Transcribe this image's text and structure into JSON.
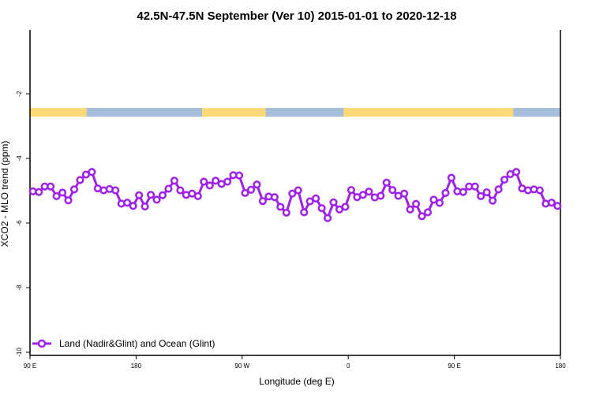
{
  "chart_data": {
    "type": "line",
    "title": "42.5N-47.5N September (Ver 10)   2015-01-01 to 2020-12-18",
    "xlabel": "Longitude (deg E)",
    "ylabel": "XCO2 - MLO trend (ppm)",
    "xlim": [
      90,
      540
    ],
    "ylim": [
      -10.2,
      0
    ],
    "x_ticks": [
      {
        "value": 90,
        "label": "90 E"
      },
      {
        "value": 180,
        "label": "180"
      },
      {
        "value": 270,
        "label": "90 W"
      },
      {
        "value": 360,
        "label": "0"
      },
      {
        "value": 450,
        "label": "90 E"
      },
      {
        "value": 540,
        "label": "180"
      }
    ],
    "y_ticks": [
      {
        "value": -2,
        "label": "-2"
      },
      {
        "value": -4,
        "label": "-4"
      },
      {
        "value": -6,
        "label": "-6"
      },
      {
        "value": -8,
        "label": "-8"
      },
      {
        "value": -10,
        "label": "-10"
      }
    ],
    "legend": {
      "position": "bottom-left",
      "entries": [
        "Land (Nadir&Glint) and Ocean (Glint)"
      ]
    },
    "surface_band": {
      "y_range": [
        -2.45,
        -2.7
      ],
      "segments": [
        {
          "from": 90,
          "to": 138,
          "type": "land"
        },
        {
          "from": 138,
          "to": 236,
          "type": "ocean"
        },
        {
          "from": 236,
          "to": 290,
          "type": "land"
        },
        {
          "from": 290,
          "to": 356,
          "type": "ocean"
        },
        {
          "from": 356,
          "to": 411,
          "type": "land"
        },
        {
          "from": 411,
          "to": 500,
          "type": "land"
        },
        {
          "from": 500,
          "to": 540,
          "type": "ocean"
        }
      ]
    },
    "colors": {
      "series": "#a020f0",
      "land": "#ffd978",
      "ocean": "#a6bddb"
    },
    "series": [
      {
        "name": "Land (Nadir&Glint) and Ocean (Glint)",
        "x_start": 92.5,
        "x_step": 5,
        "values": [
          -5.02,
          -5.04,
          -4.87,
          -4.87,
          -5.17,
          -5.06,
          -5.3,
          -4.96,
          -4.67,
          -4.5,
          -4.42,
          -4.93,
          -4.99,
          -4.95,
          -4.99,
          -5.4,
          -5.37,
          -5.47,
          -5.14,
          -5.49,
          -5.13,
          -5.28,
          -5.14,
          -4.94,
          -4.69,
          -4.99,
          -5.13,
          -5.09,
          -5.17,
          -4.72,
          -4.84,
          -4.69,
          -4.79,
          -4.72,
          -4.52,
          -4.53,
          -5.07,
          -4.97,
          -4.81,
          -5.32,
          -5.18,
          -5.2,
          -5.5,
          -5.68,
          -5.09,
          -4.99,
          -5.67,
          -5.33,
          -5.24,
          -5.54,
          -5.85,
          -5.36,
          -5.58,
          -5.5,
          -4.98,
          -5.2,
          -5.13,
          -5.03,
          -5.21,
          -5.16,
          -4.75,
          -4.98,
          -5.16,
          -5.09,
          -5.58,
          -5.41,
          -5.79,
          -5.67,
          -5.28,
          -5.38,
          -5.07,
          -4.6,
          -5.02,
          -5.04,
          -4.87,
          -4.87,
          -5.17,
          -5.05,
          -5.31,
          -4.96,
          -4.66,
          -4.49,
          -4.42,
          -4.93,
          -4.99,
          -4.96,
          -4.99,
          -5.4,
          -5.37,
          -5.47
        ]
      }
    ]
  }
}
